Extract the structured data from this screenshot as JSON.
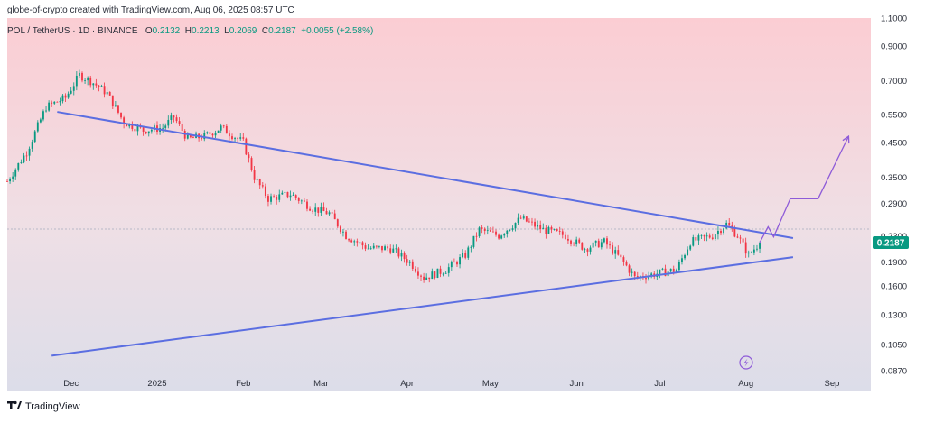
{
  "header": {
    "attribution": "globe-of-crypto created with TradingView.com, Aug 06, 2025 08:57 UTC",
    "symbol": "POL / TetherUS · 1D · BINANCE",
    "open_label": "O",
    "open": "0.2132",
    "high_label": "H",
    "high": "0.2213",
    "low_label": "L",
    "low": "0.2069",
    "close_label": "C",
    "close": "0.2187",
    "change": "+0.0055 (+2.58%)"
  },
  "footer": {
    "brand": "TradingView",
    "logo": "tradingview-logo"
  },
  "colors": {
    "up": "#089981",
    "down": "#f23645",
    "trendline": "#5b6ee1",
    "projection": "#8e5bd8",
    "price_badge": "#089981"
  },
  "chart_data": {
    "type": "candlestick",
    "title": "",
    "xlabel": "",
    "ylabel": "",
    "y_scale": "log",
    "ylim": [
      0.075,
      1.1
    ],
    "xlim": [
      "2024-11-08",
      "2025-09-15"
    ],
    "y_ticks": [
      "1.1000",
      "0.9000",
      "0.7000",
      "0.5500",
      "0.4500",
      "0.3500",
      "0.2900",
      "0.2300",
      "0.1900",
      "0.1600",
      "0.1300",
      "0.1050",
      "0.0870"
    ],
    "x_ticks": [
      {
        "label": "Dec",
        "date": "2024-12-01"
      },
      {
        "label": "2025",
        "date": "2025-01-01"
      },
      {
        "label": "Feb",
        "date": "2025-02-01"
      },
      {
        "label": "Mar",
        "date": "2025-03-01"
      },
      {
        "label": "Apr",
        "date": "2025-04-01"
      },
      {
        "label": "May",
        "date": "2025-05-01"
      },
      {
        "label": "Jun",
        "date": "2025-06-01"
      },
      {
        "label": "Jul",
        "date": "2025-07-01"
      },
      {
        "label": "Aug",
        "date": "2025-08-01"
      },
      {
        "label": "Sep",
        "date": "2025-09-01"
      }
    ],
    "last_price": "0.2187",
    "price_path": [
      {
        "date": "2024-11-08",
        "close": 0.34
      },
      {
        "date": "2024-11-15",
        "close": 0.42
      },
      {
        "date": "2024-11-22",
        "close": 0.58
      },
      {
        "date": "2024-11-29",
        "close": 0.62
      },
      {
        "date": "2024-12-04",
        "close": 0.73
      },
      {
        "date": "2024-12-08",
        "close": 0.7
      },
      {
        "date": "2024-12-14",
        "close": 0.64
      },
      {
        "date": "2024-12-20",
        "close": 0.52
      },
      {
        "date": "2024-12-27",
        "close": 0.49
      },
      {
        "date": "2025-01-03",
        "close": 0.5
      },
      {
        "date": "2025-01-07",
        "close": 0.54
      },
      {
        "date": "2025-01-12",
        "close": 0.46
      },
      {
        "date": "2025-01-18",
        "close": 0.47
      },
      {
        "date": "2025-01-24",
        "close": 0.5
      },
      {
        "date": "2025-02-01",
        "close": 0.45
      },
      {
        "date": "2025-02-05",
        "close": 0.35
      },
      {
        "date": "2025-02-10",
        "close": 0.3
      },
      {
        "date": "2025-02-18",
        "close": 0.31
      },
      {
        "date": "2025-02-26",
        "close": 0.28
      },
      {
        "date": "2025-03-04",
        "close": 0.27
      },
      {
        "date": "2025-03-10",
        "close": 0.23
      },
      {
        "date": "2025-03-18",
        "close": 0.21
      },
      {
        "date": "2025-03-26",
        "close": 0.21
      },
      {
        "date": "2025-04-02",
        "close": 0.19
      },
      {
        "date": "2025-04-07",
        "close": 0.17
      },
      {
        "date": "2025-04-15",
        "close": 0.18
      },
      {
        "date": "2025-04-22",
        "close": 0.2
      },
      {
        "date": "2025-04-27",
        "close": 0.24
      },
      {
        "date": "2025-05-04",
        "close": 0.23
      },
      {
        "date": "2025-05-12",
        "close": 0.26
      },
      {
        "date": "2025-05-20",
        "close": 0.24
      },
      {
        "date": "2025-05-28",
        "close": 0.23
      },
      {
        "date": "2025-06-04",
        "close": 0.21
      },
      {
        "date": "2025-06-11",
        "close": 0.22
      },
      {
        "date": "2025-06-18",
        "close": 0.19
      },
      {
        "date": "2025-06-22",
        "close": 0.17
      },
      {
        "date": "2025-06-30",
        "close": 0.175
      },
      {
        "date": "2025-07-07",
        "close": 0.18
      },
      {
        "date": "2025-07-12",
        "close": 0.22
      },
      {
        "date": "2025-07-20",
        "close": 0.23
      },
      {
        "date": "2025-07-25",
        "close": 0.25
      },
      {
        "date": "2025-07-29",
        "close": 0.23
      },
      {
        "date": "2025-08-02",
        "close": 0.2
      },
      {
        "date": "2025-08-06",
        "close": 0.2187
      }
    ],
    "upper_trendline": [
      {
        "date": "2024-11-26",
        "value": 0.56
      },
      {
        "date": "2025-08-18",
        "value": 0.226
      }
    ],
    "lower_trendline": [
      {
        "date": "2024-11-24",
        "value": 0.097
      },
      {
        "date": "2025-08-18",
        "value": 0.197
      }
    ],
    "projection_path": [
      {
        "date": "2025-08-06",
        "value": 0.2187
      },
      {
        "date": "2025-08-09",
        "value": 0.245
      },
      {
        "date": "2025-08-11",
        "value": 0.228
      },
      {
        "date": "2025-08-17",
        "value": 0.3
      },
      {
        "date": "2025-08-27",
        "value": 0.3
      },
      {
        "date": "2025-09-07",
        "value": 0.47
      }
    ]
  }
}
